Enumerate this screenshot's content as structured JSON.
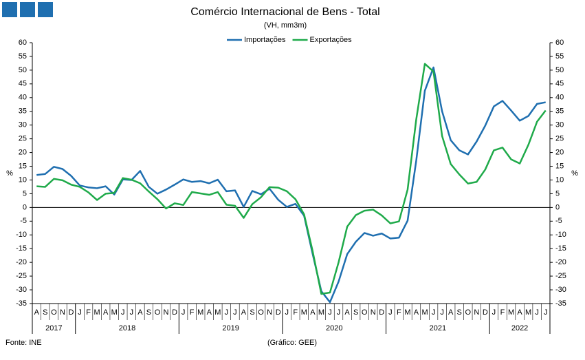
{
  "chart_data": {
    "type": "line",
    "title": "Comércio Internacional de Bens - Total",
    "subtitle": "(VH, mm3m)",
    "y_label": "%",
    "y2_label": "%",
    "source": "Fonte: INE",
    "credit": "(Gráfico: GEE)",
    "legend": "top",
    "categories": [
      "A",
      "S",
      "O",
      "N",
      "D",
      "J",
      "F",
      "M",
      "A",
      "M",
      "J",
      "J",
      "A",
      "S",
      "O",
      "N",
      "D",
      "J",
      "F",
      "M",
      "A",
      "M",
      "J",
      "J",
      "A",
      "S",
      "O",
      "N",
      "D",
      "J",
      "F",
      "M",
      "A",
      "M",
      "J",
      "J",
      "A",
      "S",
      "O",
      "N",
      "D",
      "J",
      "F",
      "M",
      "A",
      "M",
      "J",
      "J",
      "A",
      "S",
      "O",
      "N",
      "D",
      "J",
      "F",
      "M",
      "A",
      "M",
      "J",
      "J"
    ],
    "x_groups": [
      {
        "label": "2017",
        "span": 5
      },
      {
        "label": "2018",
        "span": 12
      },
      {
        "label": "2019",
        "span": 12
      },
      {
        "label": "2020",
        "span": 12
      },
      {
        "label": "2021",
        "span": 12
      },
      {
        "label": "2022",
        "span": 7
      }
    ],
    "series": [
      {
        "name": "Importações",
        "color": "#1f6fb0",
        "values": [
          11.8,
          12.2,
          14.8,
          14.0,
          11.5,
          8.0,
          7.3,
          7.0,
          7.7,
          4.7,
          10.2,
          10.0,
          13.3,
          7.5,
          5.0,
          6.5,
          8.3,
          10.2,
          9.3,
          9.6,
          8.8,
          10.1,
          5.9,
          6.2,
          0.2,
          6.0,
          4.8,
          6.8,
          2.8,
          0.2,
          1.3,
          -3.0,
          -17.0,
          -30.5,
          -34.5,
          -27.0,
          -17.0,
          -12.5,
          -9.3,
          -10.3,
          -9.5,
          -11.3,
          -11.0,
          -4.8,
          17.0,
          42.5,
          51.0,
          35.0,
          24.5,
          20.8,
          19.3,
          24.0,
          29.8,
          36.8,
          38.8,
          35.3,
          31.6,
          33.3,
          37.7,
          38.3
        ]
      },
      {
        "name": "Exportações",
        "color": "#1faa4a",
        "values": [
          7.7,
          7.5,
          10.4,
          9.9,
          8.3,
          7.5,
          5.5,
          2.7,
          5.0,
          5.3,
          10.7,
          10.1,
          8.8,
          5.8,
          3.0,
          -0.4,
          1.5,
          0.9,
          5.6,
          5.1,
          4.6,
          5.6,
          1.0,
          0.6,
          -3.8,
          1.2,
          3.7,
          7.4,
          7.2,
          5.9,
          3.0,
          -2.5,
          -16.0,
          -31.5,
          -31.0,
          -20.0,
          -7.0,
          -2.8,
          -1.2,
          -0.8,
          -2.9,
          -5.8,
          -5.1,
          6.5,
          32.0,
          52.3,
          49.5,
          26.0,
          15.8,
          12.0,
          8.7,
          9.3,
          13.8,
          20.8,
          21.8,
          17.5,
          16.0,
          22.8,
          31.2,
          35.3
        ]
      }
    ],
    "ylim": [
      -35,
      60
    ],
    "yticks": [
      -35,
      -30,
      -25,
      -20,
      -15,
      -10,
      -5,
      0,
      5,
      10,
      15,
      20,
      25,
      30,
      35,
      40,
      45,
      50,
      55,
      60
    ],
    "y2lim": [
      -35,
      60
    ],
    "y2ticks": [
      -35,
      -30,
      -25,
      -20,
      -15,
      -10,
      -5,
      0,
      5,
      10,
      15,
      20,
      25,
      30,
      35,
      40,
      45,
      50,
      55,
      60
    ]
  }
}
